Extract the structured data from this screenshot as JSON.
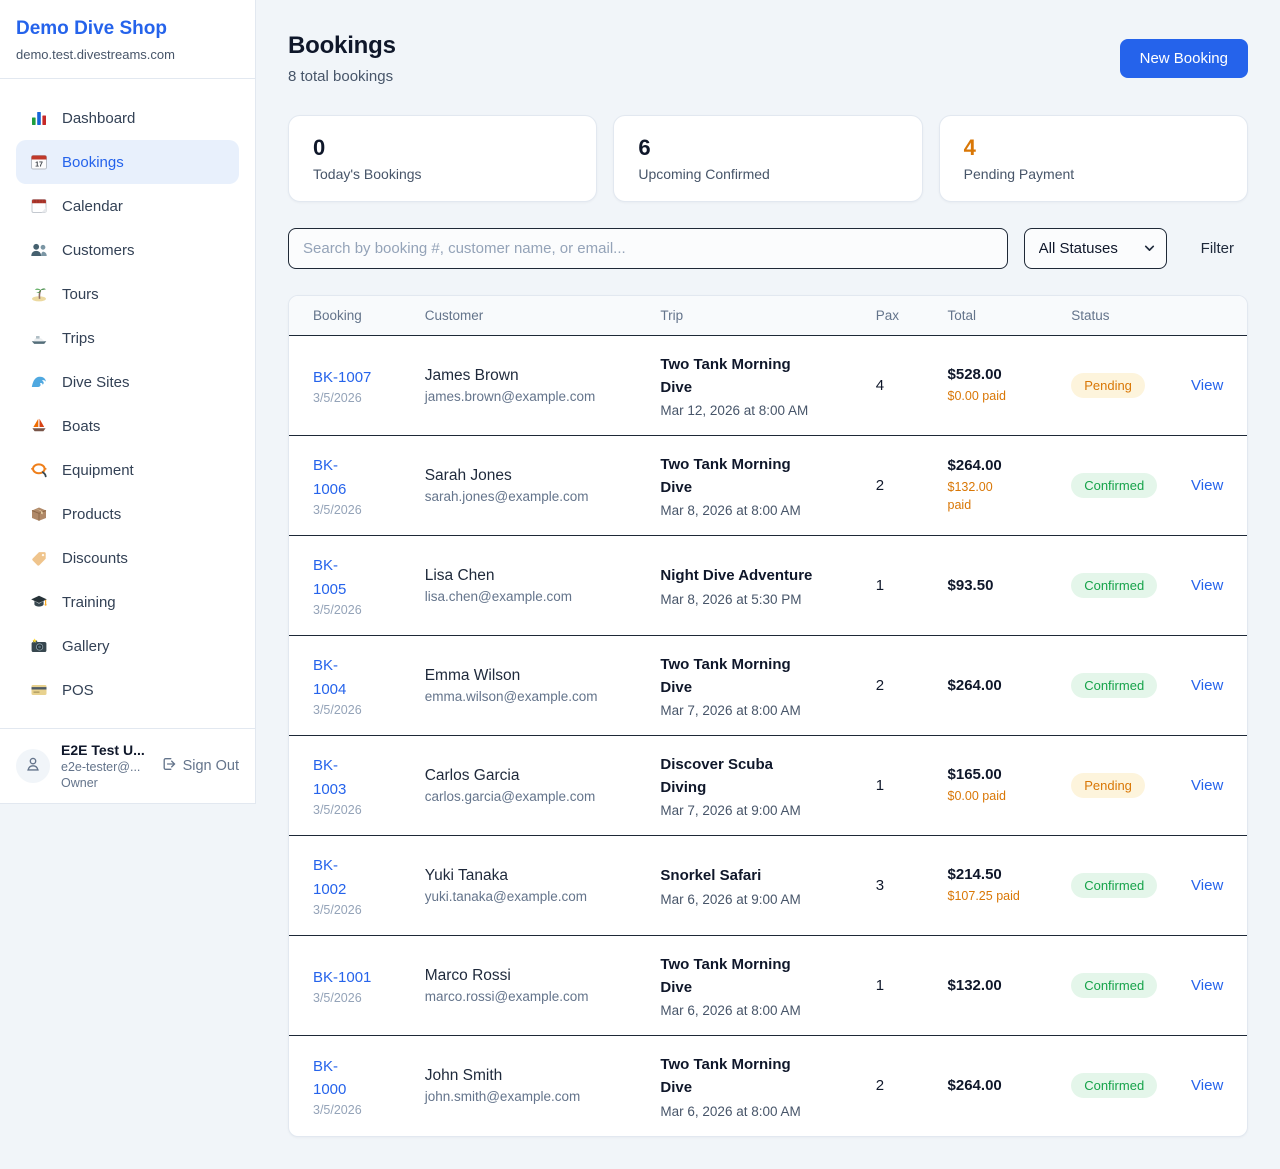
{
  "sidebar": {
    "brand": {
      "name": "Demo Dive Shop",
      "domain": "demo.test.divestreams.com"
    },
    "nav": [
      {
        "label": "Dashboard",
        "icon": "bar-chart-icon",
        "active": false
      },
      {
        "label": "Bookings",
        "icon": "calendar-date-icon",
        "active": true
      },
      {
        "label": "Calendar",
        "icon": "tear-off-calendar-icon",
        "active": false
      },
      {
        "label": "Customers",
        "icon": "people-icon",
        "active": false
      },
      {
        "label": "Tours",
        "icon": "island-icon",
        "active": false
      },
      {
        "label": "Trips",
        "icon": "speedboat-icon",
        "active": false
      },
      {
        "label": "Dive Sites",
        "icon": "wave-icon",
        "active": false
      },
      {
        "label": "Boats",
        "icon": "sailboat-icon",
        "active": false
      },
      {
        "label": "Equipment",
        "icon": "dive-mask-icon",
        "active": false
      },
      {
        "label": "Products",
        "icon": "package-icon",
        "active": false
      },
      {
        "label": "Discounts",
        "icon": "tag-icon",
        "active": false
      },
      {
        "label": "Training",
        "icon": "graduation-cap-icon",
        "active": false
      },
      {
        "label": "Gallery",
        "icon": "camera-icon",
        "active": false
      },
      {
        "label": "POS",
        "icon": "credit-card-icon",
        "active": false
      }
    ],
    "user": {
      "name": "E2E Test U...",
      "email": "e2e-tester@...",
      "role": "Owner",
      "sign_out_label": "Sign Out"
    }
  },
  "header": {
    "title": "Bookings",
    "subtitle": "8 total bookings",
    "new_booking_label": "New Booking"
  },
  "stats": [
    {
      "value": "0",
      "label": "Today's Bookings",
      "value_color": "#0f172a"
    },
    {
      "value": "6",
      "label": "Upcoming Confirmed",
      "value_color": "#0f172a"
    },
    {
      "value": "4",
      "label": "Pending Payment",
      "value_color": "#d97706"
    }
  ],
  "filters": {
    "search_placeholder": "Search by booking #, customer name, or email...",
    "status_selected": "All Statuses",
    "filter_label": "Filter"
  },
  "table": {
    "columns": [
      "Booking",
      "Customer",
      "Trip",
      "Pax",
      "Total",
      "Status"
    ],
    "view_label": "View",
    "rows": [
      {
        "id": "BK-1007",
        "date": "3/5/2026",
        "customer": "James Brown",
        "email": "james.brown@example.com",
        "trip": "Two Tank Morning\nDive",
        "trip_datetime": "Mar 12, 2026 at 8:00 AM",
        "pax": "4",
        "total": "$528.00",
        "paid": "$0.00 paid",
        "status": "Pending"
      },
      {
        "id": "BK-\n1006",
        "date": "3/5/2026",
        "customer": "Sarah Jones",
        "email": "sarah.jones@example.com",
        "trip": "Two Tank Morning\nDive",
        "trip_datetime": "Mar 8, 2026 at 8:00 AM",
        "pax": "2",
        "total": "$264.00",
        "paid": "$132.00\npaid",
        "status": "Confirmed"
      },
      {
        "id": "BK-\n1005",
        "date": "3/5/2026",
        "customer": "Lisa Chen",
        "email": "lisa.chen@example.com",
        "trip": "Night Dive Adventure",
        "trip_datetime": "Mar 8, 2026 at 5:30 PM",
        "pax": "1",
        "total": "$93.50",
        "paid": "",
        "status": "Confirmed"
      },
      {
        "id": "BK-\n1004",
        "date": "3/5/2026",
        "customer": "Emma Wilson",
        "email": "emma.wilson@example.com",
        "trip": "Two Tank Morning\nDive",
        "trip_datetime": "Mar 7, 2026 at 8:00 AM",
        "pax": "2",
        "total": "$264.00",
        "paid": "",
        "status": "Confirmed"
      },
      {
        "id": "BK-\n1003",
        "date": "3/5/2026",
        "customer": "Carlos Garcia",
        "email": "carlos.garcia@example.com",
        "trip": "Discover Scuba\nDiving",
        "trip_datetime": "Mar 7, 2026 at 9:00 AM",
        "pax": "1",
        "total": "$165.00",
        "paid": "$0.00 paid",
        "status": "Pending"
      },
      {
        "id": "BK-\n1002",
        "date": "3/5/2026",
        "customer": "Yuki Tanaka",
        "email": "yuki.tanaka@example.com",
        "trip": "Snorkel Safari",
        "trip_datetime": "Mar 6, 2026 at 9:00 AM",
        "pax": "3",
        "total": "$214.50",
        "paid": "$107.25 paid",
        "status": "Confirmed"
      },
      {
        "id": "BK-1001",
        "date": "3/5/2026",
        "customer": "Marco Rossi",
        "email": "marco.rossi@example.com",
        "trip": "Two Tank Morning\nDive",
        "trip_datetime": "Mar 6, 2026 at 8:00 AM",
        "pax": "1",
        "total": "$132.00",
        "paid": "",
        "status": "Confirmed"
      },
      {
        "id": "BK-\n1000",
        "date": "3/5/2026",
        "customer": "John Smith",
        "email": "john.smith@example.com",
        "trip": "Two Tank Morning\nDive",
        "trip_datetime": "Mar 6, 2026 at 8:00 AM",
        "pax": "2",
        "total": "$264.00",
        "paid": "",
        "status": "Confirmed"
      }
    ]
  },
  "colors": {
    "primary_blue": "#2563eb",
    "pending_orange": "#d97706",
    "confirmed_green": "#16a34a",
    "page_background": "#f1f5f9"
  }
}
